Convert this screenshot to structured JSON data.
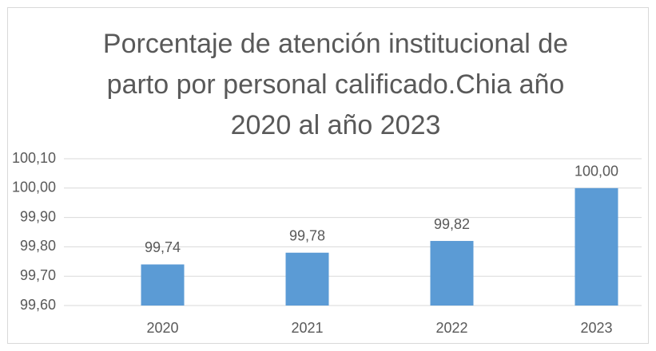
{
  "chart_data": {
    "type": "bar",
    "title": "Porcentaje de atención institucional de parto por personal calificado.Chia año 2020 al año 2023",
    "categories": [
      "2020",
      "2021",
      "2022",
      "2023"
    ],
    "values": [
      99.74,
      99.78,
      99.82,
      100.0
    ],
    "value_labels": [
      "99,74",
      "99,78",
      "99,82",
      "100,00"
    ],
    "color": "#5b9bd5",
    "ylim": [
      99.6,
      100.1
    ],
    "yticks": [
      {
        "value": 99.6,
        "label": "99,60"
      },
      {
        "value": 99.7,
        "label": "99,70"
      },
      {
        "value": 99.8,
        "label": "99,80"
      },
      {
        "value": 99.9,
        "label": "99,90"
      },
      {
        "value": 100.0,
        "label": "100,00"
      },
      {
        "value": 100.1,
        "label": "100,10"
      }
    ],
    "grid": true
  }
}
